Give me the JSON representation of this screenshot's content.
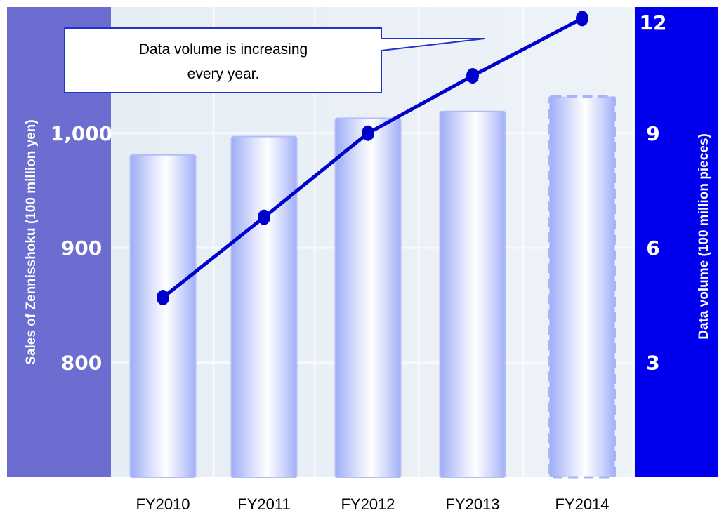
{
  "chart_data": {
    "type": "bar",
    "categories": [
      "FY2010",
      "FY2011",
      "FY2012",
      "FY2013",
      "FY2014"
    ],
    "series": [
      {
        "name": "Sales of Zennisshoku",
        "kind": "bar",
        "axis": "left",
        "values": [
          981,
          997,
          1013,
          1019,
          1032
        ],
        "estimated_last": true
      },
      {
        "name": "Data volume",
        "kind": "line",
        "axis": "right",
        "values": [
          4.7,
          6.8,
          9.0,
          10.5,
          12.0
        ]
      }
    ],
    "y_left": {
      "label": "Sales of Zennisshoku (100 million yen)",
      "ticks": [
        "800",
        "900",
        "1,000"
      ],
      "tick_values": [
        800,
        900,
        1000
      ],
      "range": [
        700,
        1110
      ]
    },
    "y_right": {
      "label": "Data volume (100 million  pieces)",
      "ticks": [
        "3",
        "6",
        "9",
        "12"
      ],
      "tick_values": [
        3,
        6,
        9,
        12
      ],
      "range": [
        0,
        12.3
      ]
    },
    "annotation": {
      "line1": "Data volume is increasing",
      "line2": "every year."
    },
    "colors": {
      "left_axis_band": "#6b6ed0",
      "right_axis_band": "#0000ee",
      "line": "#0000cc",
      "bar_edge": "#a9b4f8",
      "bar_center": "#ffffff",
      "plot_background": "#eaf0f6",
      "callout_border": "#2233cc"
    },
    "grid": true
  }
}
